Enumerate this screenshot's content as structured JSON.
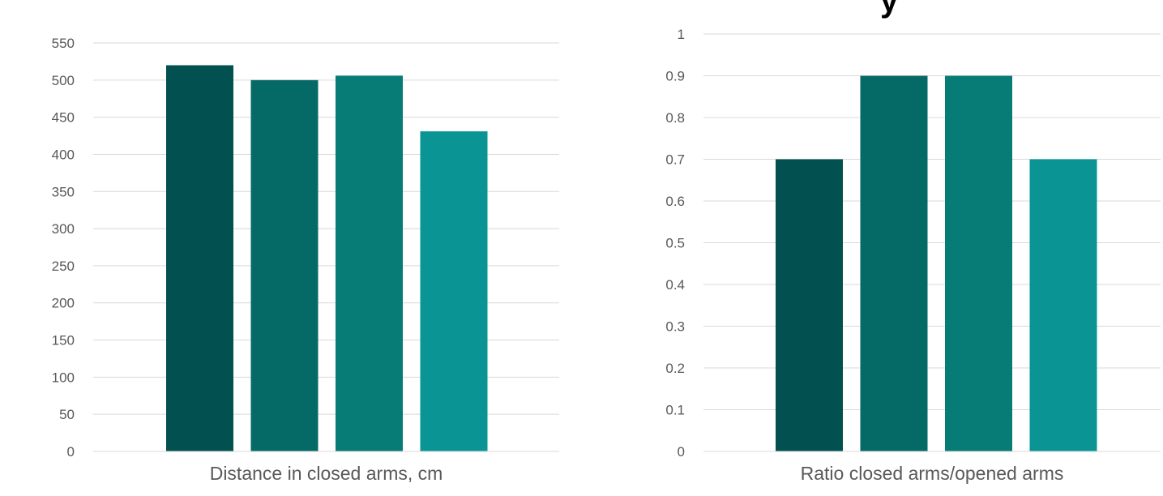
{
  "title_fragment": "y",
  "chart_data": [
    {
      "type": "bar",
      "xlabel": "Distance in closed arms, cm",
      "ylabel": "",
      "ylim": [
        0,
        550
      ],
      "yticks": [
        "0",
        "50",
        "100",
        "150",
        "200",
        "250",
        "300",
        "350",
        "400",
        "450",
        "500",
        "550"
      ],
      "grid": true,
      "legend": "none",
      "values": [
        520,
        500,
        506,
        431
      ],
      "colors": [
        "#02504f",
        "#056a66",
        "#077b76",
        "#0a9594"
      ]
    },
    {
      "type": "bar",
      "xlabel": "Ratio closed arms/opened arms",
      "ylabel": "",
      "ylim": [
        0,
        1
      ],
      "yticks": [
        "0",
        "0.1",
        "0.2",
        "0.3",
        "0.4",
        "0.5",
        "0.6",
        "0.7",
        "0.8",
        "0.9",
        "1"
      ],
      "grid": true,
      "legend": "none",
      "values": [
        0.7,
        0.9,
        0.9,
        0.7
      ],
      "colors": [
        "#02504f",
        "#056a66",
        "#077b76",
        "#0a9594"
      ]
    }
  ]
}
